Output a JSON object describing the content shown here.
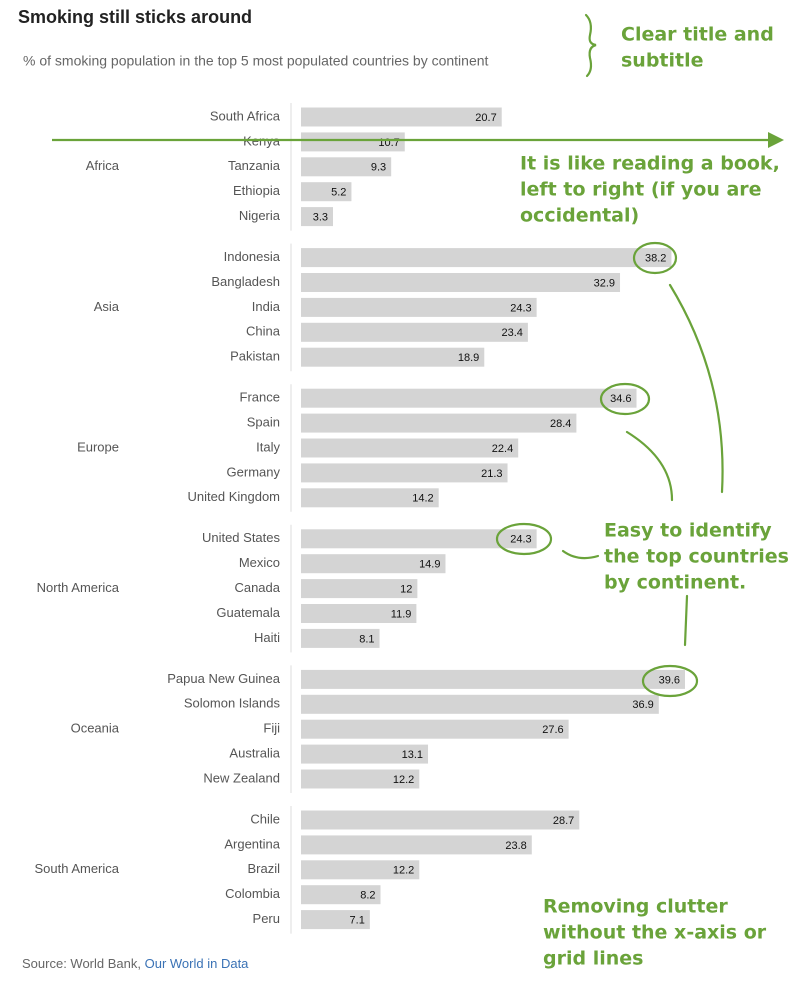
{
  "chart_data": {
    "type": "bar",
    "title": "Smoking still sticks around",
    "subtitle": "% of smoking population in the top 5 most populated countries by continent",
    "color": "#d4d4d4",
    "groups": [
      {
        "name": "Africa",
        "categories": [
          "South Africa",
          "Kenya",
          "Tanzania",
          "Ethiopia",
          "Nigeria"
        ],
        "values": [
          20.7,
          10.7,
          9.3,
          5.2,
          3.3
        ]
      },
      {
        "name": "Asia",
        "categories": [
          "Indonesia",
          "Bangladesh",
          "India",
          "China",
          "Pakistan"
        ],
        "values": [
          38.2,
          32.9,
          24.3,
          23.4,
          18.9
        ]
      },
      {
        "name": "Europe",
        "categories": [
          "France",
          "Spain",
          "Italy",
          "Germany",
          "United Kingdom"
        ],
        "values": [
          34.6,
          28.4,
          22.4,
          21.3,
          14.2
        ]
      },
      {
        "name": "North America",
        "categories": [
          "United States",
          "Mexico",
          "Canada",
          "Guatemala",
          "Haiti"
        ],
        "values": [
          24.3,
          14.9,
          12,
          11.9,
          8.1
        ]
      },
      {
        "name": "Oceania",
        "categories": [
          "Papua New Guinea",
          "Solomon Islands",
          "Fiji",
          "Australia",
          "New Zealand"
        ],
        "values": [
          39.6,
          36.9,
          27.6,
          13.1,
          12.2
        ]
      },
      {
        "name": "South America",
        "categories": [
          "Chile",
          "Argentina",
          "Brazil",
          "Colombia",
          "Peru"
        ],
        "values": [
          28.7,
          23.8,
          12.2,
          8.2,
          7.1
        ]
      }
    ],
    "source": "Source: World Bank,",
    "source_link": "Our World in Data",
    "annotations": [
      {
        "lines": [
          "Clear title and",
          "subtitle"
        ]
      },
      {
        "lines": [
          "It is like reading a book,",
          "left to right (if you are",
          "occidental)"
        ]
      },
      {
        "lines": [
          "Easy to identify",
          "the top countries",
          "by continent."
        ]
      },
      {
        "lines": [
          "Removing clutter",
          "without the x-axis or",
          "grid lines"
        ]
      }
    ]
  }
}
